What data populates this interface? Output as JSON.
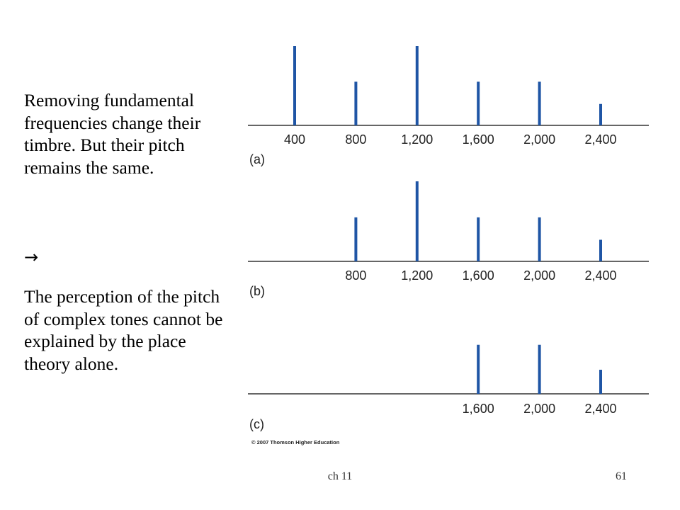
{
  "slide": {
    "paragraph1": "Removing fundamental frequencies change their timbre. But their pitch remains the same.",
    "arrow": "→",
    "paragraph2": "The perception of the pitch of complex tones cannot be explained by the place theory alone.",
    "copyright": "© 2007 Thomson Higher Education",
    "footer_left": "ch 11",
    "footer_right": "61"
  },
  "colors": {
    "bar": "#1f55a5",
    "axis": "#333333",
    "text": "#000000"
  },
  "chart_data": [
    {
      "type": "bar",
      "panel_label": "(a)",
      "x": [
        400,
        800,
        1200,
        1600,
        2000,
        2400
      ],
      "tick_labels": [
        "400",
        "800",
        "1,200",
        "1,600",
        "2,000",
        "2,400"
      ],
      "values": [
        1.0,
        0.55,
        1.0,
        0.55,
        0.55,
        0.27
      ]
    },
    {
      "type": "bar",
      "panel_label": "(b)",
      "x": [
        800,
        1200,
        1600,
        2000,
        2400
      ],
      "tick_labels": [
        "800",
        "1,200",
        "1,600",
        "2,000",
        "2,400"
      ],
      "values": [
        0.55,
        1.0,
        0.55,
        0.55,
        0.27
      ]
    },
    {
      "type": "bar",
      "panel_label": "(c)",
      "x": [
        1600,
        2000,
        2400
      ],
      "tick_labels": [
        "1,600",
        "2,000",
        "2,400"
      ],
      "values": [
        0.55,
        0.55,
        0.27
      ]
    }
  ]
}
